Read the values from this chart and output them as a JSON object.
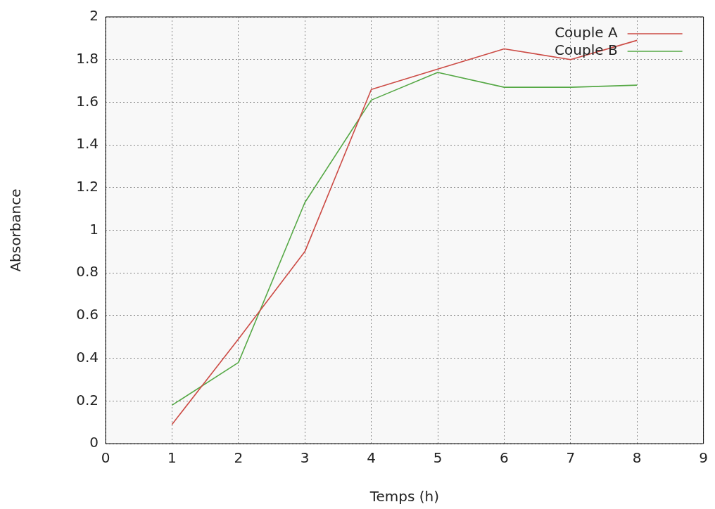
{
  "chart_data": {
    "type": "line",
    "xlabel": "Temps (h)",
    "ylabel": "Absorbance",
    "x": [
      1,
      2,
      3,
      4,
      5,
      6,
      7,
      8
    ],
    "series": [
      {
        "name": "Couple A",
        "color": "#cc4b45",
        "values": [
          0.09,
          0.49,
          0.9,
          1.66,
          1.755,
          1.85,
          1.8,
          1.89
        ]
      },
      {
        "name": "Couple B",
        "color": "#55a845",
        "values": [
          0.18,
          0.38,
          1.13,
          1.61,
          1.74,
          1.67,
          1.67,
          1.68
        ]
      }
    ],
    "xlim": [
      0,
      9
    ],
    "xticks": [
      0,
      1,
      2,
      3,
      4,
      5,
      6,
      7,
      8,
      9
    ],
    "ylim": [
      0,
      2
    ],
    "yticks": [
      0,
      0.2,
      0.4,
      0.6,
      0.8,
      1,
      1.2,
      1.4,
      1.6,
      1.8,
      2
    ],
    "grid": true,
    "legend": "top right",
    "marker": "none",
    "line_style": "solid"
  }
}
